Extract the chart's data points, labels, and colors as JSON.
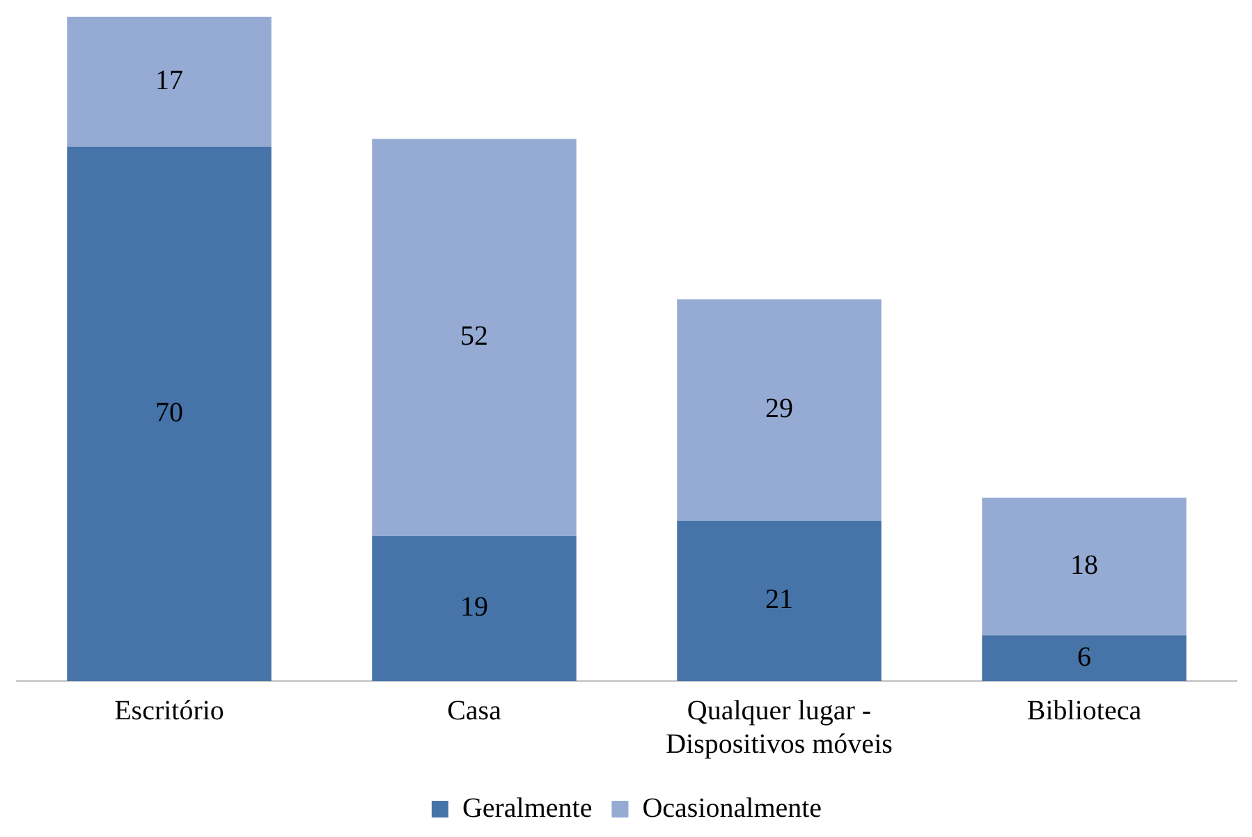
{
  "chart_data": {
    "type": "bar",
    "stacked": true,
    "categories": [
      "Escritório",
      "Casa",
      "Qualquer lugar - Dispositivos móveis",
      "Biblioteca"
    ],
    "series": [
      {
        "name": "Geralmente",
        "color": "#4674a8",
        "values": [
          70,
          19,
          21,
          6
        ]
      },
      {
        "name": "Ocasionalmente",
        "color": "#95abd3",
        "values": [
          17,
          52,
          29,
          18
        ]
      }
    ],
    "data_labels": true,
    "legend": "bottom",
    "grid": false
  }
}
